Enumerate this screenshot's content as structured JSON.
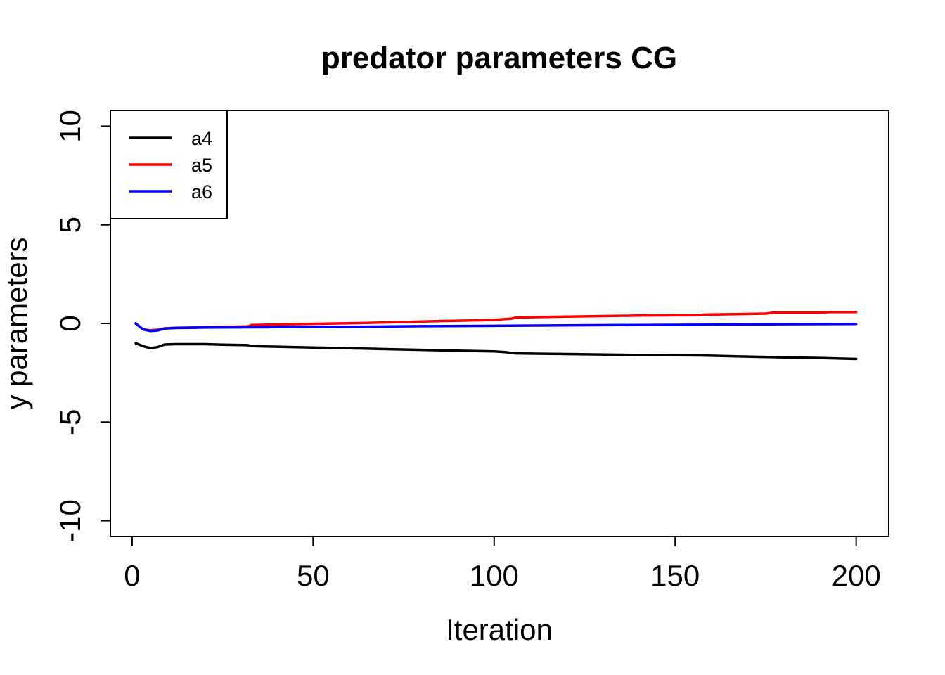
{
  "chart_data": {
    "type": "line",
    "title": "predator parameters CG",
    "xlabel": "Iteration",
    "ylabel": "y parameters",
    "xlim": [
      -6,
      209
    ],
    "ylim": [
      -10.8,
      10.8
    ],
    "xticks": [
      0,
      50,
      100,
      150,
      200
    ],
    "yticks": [
      -10,
      -5,
      0,
      5,
      10
    ],
    "xtick_labels": [
      "0",
      "50",
      "100",
      "150",
      "200"
    ],
    "ytick_labels": [
      "-10",
      "-5",
      "0",
      "5",
      "10"
    ],
    "grid": false,
    "legend": {
      "position": "top-left",
      "entries": [
        "a4",
        "a5",
        "a6"
      ]
    },
    "series": [
      {
        "name": "a4",
        "color": "#000000",
        "x": [
          1,
          3,
          5,
          7,
          9,
          12,
          20,
          25,
          32,
          33,
          40,
          50,
          60,
          70,
          80,
          90,
          100,
          103,
          105,
          106,
          120,
          140,
          157,
          170,
          180,
          190,
          200
        ],
        "y": [
          -1.0,
          -1.15,
          -1.25,
          -1.2,
          -1.07,
          -1.05,
          -1.05,
          -1.08,
          -1.1,
          -1.15,
          -1.18,
          -1.22,
          -1.26,
          -1.3,
          -1.34,
          -1.38,
          -1.42,
          -1.45,
          -1.5,
          -1.52,
          -1.55,
          -1.6,
          -1.62,
          -1.68,
          -1.72,
          -1.75,
          -1.8
        ]
      },
      {
        "name": "a5",
        "color": "#ff0000",
        "x": [
          1,
          3,
          5,
          7,
          9,
          12,
          20,
          32,
          33,
          50,
          65,
          80,
          100,
          103,
          105,
          106,
          120,
          140,
          157,
          158,
          170,
          175,
          177,
          190,
          193,
          200
        ],
        "y": [
          0.0,
          -0.3,
          -0.35,
          -0.32,
          -0.25,
          -0.22,
          -0.2,
          -0.15,
          -0.08,
          -0.02,
          0.03,
          0.1,
          0.18,
          0.22,
          0.25,
          0.3,
          0.35,
          0.4,
          0.42,
          0.45,
          0.48,
          0.5,
          0.55,
          0.55,
          0.58,
          0.58
        ]
      },
      {
        "name": "a6",
        "color": "#0000ff",
        "x": [
          1,
          3,
          5,
          7,
          9,
          12,
          20,
          40,
          60,
          80,
          100,
          120,
          140,
          160,
          180,
          200
        ],
        "y": [
          0.0,
          -0.3,
          -0.38,
          -0.36,
          -0.26,
          -0.23,
          -0.21,
          -0.19,
          -0.17,
          -0.14,
          -0.12,
          -0.1,
          -0.08,
          -0.06,
          -0.04,
          -0.03
        ]
      }
    ]
  }
}
